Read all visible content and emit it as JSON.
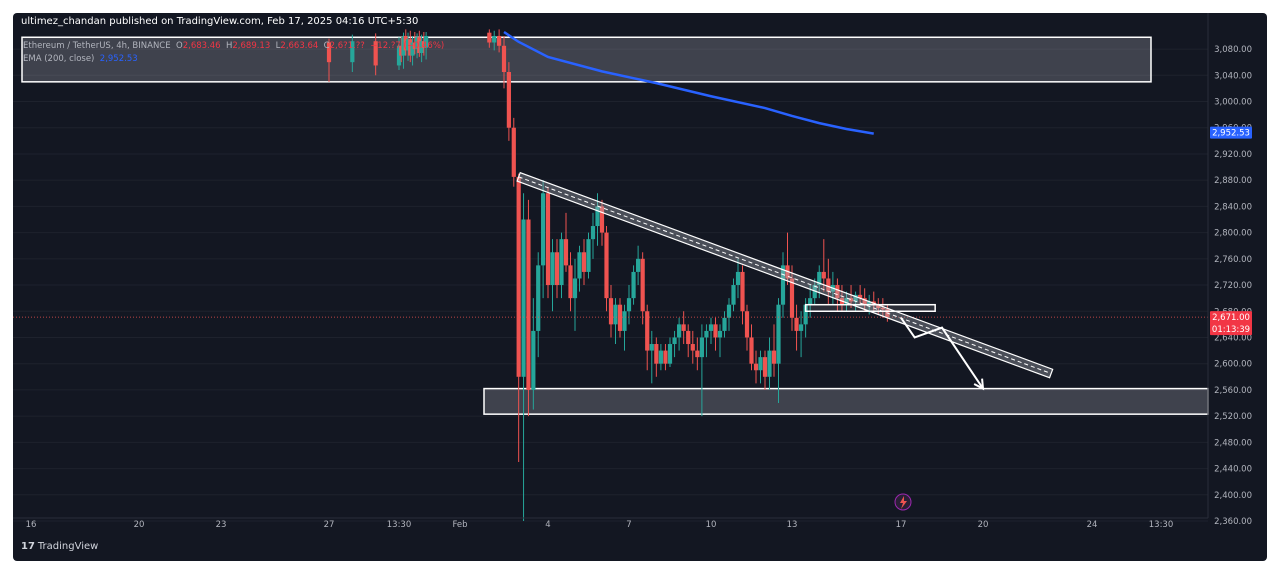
{
  "header": {
    "published_line": "ultimez_chandan published on TradingView.com, Feb 17, 2025 04:16 UTC+5:30"
  },
  "legend": {
    "symbol": "Ethereum / TetherUS, 4h, BINANCE",
    "open_label": "O",
    "open": "2,683.46",
    "high_label": "H",
    "high": "2,689.13",
    "low_label": "L",
    "low": "2,663.64",
    "close_label": "C",
    "close": "2,6?1.??",
    "change": "−12.?7 (−0.46%)",
    "ema_label": "EMA (200, close)",
    "ema_value": "2,952.53"
  },
  "footer": {
    "brand": "TradingView",
    "logo_text": "17"
  },
  "colors": {
    "background": "#131722",
    "up": "#26a69a",
    "down": "#ef5350",
    "ema": "#2962ff",
    "annotation": "#ffffff",
    "text": "#b2b5be"
  },
  "chart_data": {
    "type": "candlestick",
    "symbol": "ETHUSDT",
    "timeframe": "4h",
    "ylim": [
      2345,
      3110
    ],
    "y_ticks": [
      "3,080.00",
      "3,040.00",
      "3,000.00",
      "2,960.00",
      "2,920.00",
      "2,880.00",
      "2,840.00",
      "2,800.00",
      "2,760.00",
      "2,720.00",
      "2,680.00",
      "2,640.00",
      "2,600.00",
      "2,560.00",
      "2,520.00",
      "2,480.00",
      "2,440.00",
      "2,400.00",
      "2,360.00"
    ],
    "x_ticks": [
      "16",
      "20",
      "23",
      "27",
      "13:30",
      "Feb",
      "4",
      "7",
      "10",
      "13",
      "17",
      "20",
      "24",
      "13:30"
    ],
    "last_price": "2,671.00",
    "countdown": "01:13:39",
    "ema_label_value": "2,952.53",
    "ema_points": [
      [
        "Feb 2 12:00",
        3106
      ],
      [
        "Feb 3",
        3091
      ],
      [
        "Feb 4",
        3068
      ],
      [
        "Feb 6",
        3046
      ],
      [
        "Feb 8",
        3028
      ],
      [
        "Feb 10",
        3008
      ],
      [
        "Feb 12",
        2990
      ],
      [
        "Feb 13",
        2978
      ],
      [
        "Feb 14",
        2967
      ],
      [
        "Feb 15",
        2958
      ],
      [
        "Feb 16 00:00",
        2951
      ]
    ],
    "upper_zone": [
      3030,
      3098
    ],
    "lower_zone": [
      2523,
      2562
    ],
    "small_box": [
      2680,
      2690
    ],
    "trendline": {
      "from": [
        "Feb 3 00:00",
        2885
      ],
      "to": [
        "Feb 22 12:00",
        2585
      ]
    },
    "projection": [
      [
        "Feb 17 00:00",
        2670
      ],
      [
        "Feb 17 12:00",
        2640
      ],
      [
        "Feb 18 12:00",
        2655
      ],
      [
        "Feb 20 00:00",
        2562
      ]
    ],
    "candles": [
      [
        "Jan 27 00:00",
        3090,
        3096,
        3030,
        3060
      ],
      [
        "Jan 27 04:00",
        3060,
        3102,
        3045,
        3092
      ],
      [
        "Jan 27 08:00",
        3092,
        3104,
        3040,
        3055
      ],
      [
        "Jan 27 12:00",
        3055,
        3098,
        3048,
        3085
      ],
      [
        "Jan 27 16:00",
        3085,
        3100,
        3060,
        3070
      ],
      [
        "Jan 27 20:00",
        3070,
        3105,
        3050,
        3100
      ],
      [
        "Jan 28 00:00",
        3100,
        3110,
        3070,
        3078
      ],
      [
        "Jan 28 04:00",
        3078,
        3105,
        3062,
        3095
      ],
      [
        "Jan 28 08:00",
        3095,
        3108,
        3060,
        3070
      ],
      [
        "Jan 28 12:00",
        3070,
        3100,
        3055,
        3090
      ],
      [
        "Jan 28 16:00",
        3090,
        3106,
        3072,
        3080
      ],
      [
        "Jan 28 20:00",
        3080,
        3104,
        3066,
        3098
      ],
      [
        "Jan 29 00:00",
        3098,
        3108,
        3068,
        3074
      ],
      [
        "Jan 29 04:00",
        3074,
        3102,
        3060,
        3092
      ],
      [
        "Jan 29 08:00",
        3092,
        3106,
        3070,
        3082
      ],
      [
        "Jan 29 12:00",
        3082,
        3106,
        3064,
        3100
      ],
      [
        "Feb 2 00:00",
        3105,
        3110,
        3082,
        3090
      ],
      [
        "Feb 2 04:00",
        3090,
        3108,
        3078,
        3100
      ],
      [
        "Feb 2 08:00",
        3100,
        3110,
        3075,
        3085
      ],
      [
        "Feb 2 12:00",
        3085,
        3100,
        3020,
        3045
      ],
      [
        "Feb 2 16:00",
        3045,
        3060,
        2940,
        2960
      ],
      [
        "Feb 2 20:00",
        2960,
        2975,
        2870,
        2885
      ],
      [
        "Feb 3 00:00",
        2885,
        2890,
        2450,
        2580
      ],
      [
        "Feb 3 04:00",
        2580,
        2860,
        2360,
        2820
      ],
      [
        "Feb 3 08:00",
        2820,
        2850,
        2520,
        2560
      ],
      [
        "Feb 3 12:00",
        2560,
        2700,
        2530,
        2650
      ],
      [
        "Feb 3 16:00",
        2650,
        2770,
        2610,
        2750
      ],
      [
        "Feb 3 20:00",
        2750,
        2880,
        2700,
        2860
      ],
      [
        "Feb 4 00:00",
        2860,
        2870,
        2700,
        2720
      ],
      [
        "Feb 4 04:00",
        2720,
        2790,
        2680,
        2770
      ],
      [
        "Feb 4 08:00",
        2770,
        2790,
        2700,
        2720
      ],
      [
        "Feb 4 12:00",
        2720,
        2800,
        2700,
        2790
      ],
      [
        "Feb 4 16:00",
        2790,
        2830,
        2740,
        2750
      ],
      [
        "Feb 4 20:00",
        2750,
        2770,
        2680,
        2700
      ],
      [
        "Feb 5 00:00",
        2700,
        2760,
        2650,
        2730
      ],
      [
        "Feb 5 04:00",
        2730,
        2780,
        2710,
        2770
      ],
      [
        "Feb 5 08:00",
        2770,
        2790,
        2720,
        2740
      ],
      [
        "Feb 5 12:00",
        2740,
        2800,
        2730,
        2790
      ],
      [
        "Feb 5 16:00",
        2790,
        2830,
        2760,
        2810
      ],
      [
        "Feb 5 20:00",
        2810,
        2860,
        2780,
        2840
      ],
      [
        "Feb 6 00:00",
        2840,
        2850,
        2780,
        2800
      ],
      [
        "Feb 6 04:00",
        2800,
        2810,
        2680,
        2700
      ],
      [
        "Feb 6 08:00",
        2700,
        2720,
        2640,
        2660
      ],
      [
        "Feb 6 12:00",
        2660,
        2700,
        2630,
        2690
      ],
      [
        "Feb 6 16:00",
        2690,
        2700,
        2640,
        2650
      ],
      [
        "Feb 6 20:00",
        2650,
        2690,
        2620,
        2680
      ],
      [
        "Feb 7 00:00",
        2680,
        2720,
        2660,
        2700
      ],
      [
        "Feb 7 04:00",
        2700,
        2750,
        2690,
        2740
      ],
      [
        "Feb 7 08:00",
        2740,
        2780,
        2720,
        2760
      ],
      [
        "Feb 7 12:00",
        2760,
        2770,
        2660,
        2680
      ],
      [
        "Feb 7 16:00",
        2680,
        2690,
        2590,
        2620
      ],
      [
        "Feb 7 20:00",
        2620,
        2650,
        2570,
        2630
      ],
      [
        "Feb 8 00:00",
        2630,
        2640,
        2580,
        2600
      ],
      [
        "Feb 8 04:00",
        2600,
        2630,
        2590,
        2620
      ],
      [
        "Feb 8 08:00",
        2620,
        2630,
        2590,
        2600
      ],
      [
        "Feb 8 12:00",
        2600,
        2640,
        2595,
        2630
      ],
      [
        "Feb 8 16:00",
        2630,
        2650,
        2610,
        2640
      ],
      [
        "Feb 8 20:00",
        2640,
        2670,
        2620,
        2660
      ],
      [
        "Feb 9 00:00",
        2660,
        2680,
        2630,
        2650
      ],
      [
        "Feb 9 04:00",
        2650,
        2660,
        2610,
        2630
      ],
      [
        "Feb 9 08:00",
        2630,
        2650,
        2600,
        2620
      ],
      [
        "Feb 9 12:00",
        2620,
        2640,
        2590,
        2610
      ],
      [
        "Feb 9 16:00",
        2610,
        2660,
        2520,
        2640
      ],
      [
        "Feb 9 20:00",
        2640,
        2660,
        2610,
        2650
      ],
      [
        "Feb 10 00:00",
        2650,
        2670,
        2630,
        2660
      ],
      [
        "Feb 10 04:00",
        2660,
        2670,
        2620,
        2640
      ],
      [
        "Feb 10 08:00",
        2640,
        2660,
        2610,
        2650
      ],
      [
        "Feb 10 12:00",
        2650,
        2680,
        2640,
        2670
      ],
      [
        "Feb 10 16:00",
        2670,
        2700,
        2650,
        2690
      ],
      [
        "Feb 10 20:00",
        2690,
        2730,
        2680,
        2720
      ],
      [
        "Feb 11 00:00",
        2720,
        2760,
        2700,
        2740
      ],
      [
        "Feb 11 04:00",
        2740,
        2750,
        2660,
        2680
      ],
      [
        "Feb 11 08:00",
        2680,
        2690,
        2620,
        2640
      ],
      [
        "Feb 11 12:00",
        2640,
        2660,
        2590,
        2600
      ],
      [
        "Feb 11 16:00",
        2600,
        2620,
        2570,
        2590
      ],
      [
        "Feb 11 20:00",
        2590,
        2620,
        2570,
        2610
      ],
      [
        "Feb 12 00:00",
        2610,
        2620,
        2560,
        2580
      ],
      [
        "Feb 12 04:00",
        2580,
        2640,
        2560,
        2620
      ],
      [
        "Feb 12 08:00",
        2620,
        2660,
        2580,
        2600
      ],
      [
        "Feb 12 12:00",
        2600,
        2700,
        2540,
        2690
      ],
      [
        "Feb 12 16:00",
        2690,
        2770,
        2670,
        2750
      ],
      [
        "Feb 12 20:00",
        2750,
        2800,
        2720,
        2730
      ],
      [
        "Feb 13 00:00",
        2730,
        2750,
        2650,
        2670
      ],
      [
        "Feb 13 04:00",
        2670,
        2690,
        2620,
        2650
      ],
      [
        "Feb 13 08:00",
        2650,
        2680,
        2610,
        2660
      ],
      [
        "Feb 13 12:00",
        2660,
        2700,
        2640,
        2690
      ],
      [
        "Feb 13 16:00",
        2690,
        2720,
        2670,
        2700
      ],
      [
        "Feb 13 20:00",
        2700,
        2730,
        2690,
        2720
      ],
      [
        "Feb 14 00:00",
        2720,
        2750,
        2700,
        2740
      ],
      [
        "Feb 14 04:00",
        2740,
        2790,
        2710,
        2730
      ],
      [
        "Feb 14 08:00",
        2730,
        2760,
        2690,
        2710
      ],
      [
        "Feb 14 12:00",
        2710,
        2740,
        2690,
        2720
      ],
      [
        "Feb 14 16:00",
        2720,
        2730,
        2680,
        2700
      ],
      [
        "Feb 14 20:00",
        2700,
        2720,
        2680,
        2690
      ],
      [
        "Feb 15 00:00",
        2690,
        2710,
        2680,
        2700
      ],
      [
        "Feb 15 04:00",
        2700,
        2720,
        2685,
        2695
      ],
      [
        "Feb 15 08:00",
        2695,
        2710,
        2680,
        2705
      ],
      [
        "Feb 15 12:00",
        2705,
        2720,
        2690,
        2700
      ],
      [
        "Feb 15 16:00",
        2700,
        2715,
        2680,
        2690
      ],
      [
        "Feb 15 20:00",
        2690,
        2705,
        2675,
        2695
      ],
      [
        "Feb 16 00:00",
        2695,
        2710,
        2680,
        2690
      ],
      [
        "Feb 16 04:00",
        2690,
        2700,
        2675,
        2685
      ],
      [
        "Feb 16 08:00",
        2685,
        2700,
        2670,
        2683
      ],
      [
        "Feb 16 12:00",
        2683,
        2689,
        2664,
        2671
      ]
    ]
  }
}
